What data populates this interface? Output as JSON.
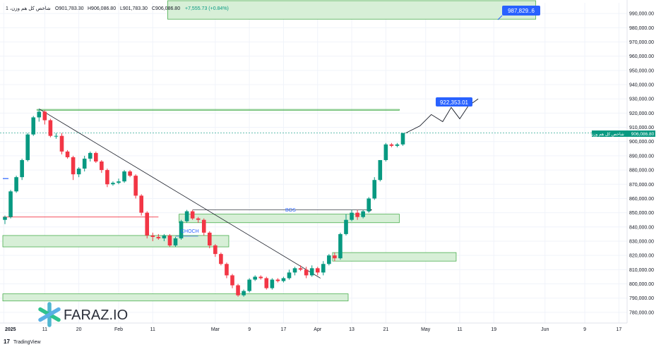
{
  "legend": {
    "symbol": "شاخص کل هم وزن، 1",
    "open": "O901,783.30",
    "high": "H906,086.80",
    "low": "L901,783.30",
    "close": "C906,086.80",
    "change": "+7,555.73 (+0.84%)"
  },
  "current_price_tag": {
    "name": "شاخص کل هم وزن",
    "value": "906,086.80"
  },
  "labels": {
    "bos": "BOS",
    "choch": "CHOCH",
    "target_1": "922,353.01",
    "target_2": "987,829..6"
  },
  "branding": {
    "logo_text": "FARAZ.IO",
    "footer": "TradingView"
  },
  "colors": {
    "up": "#089981",
    "down": "#f23645",
    "zone_fill": "#d7efd7",
    "zone_border": "#4caf50",
    "tag_blue": "#2962ff",
    "price_tag_green": "#089981"
  },
  "chart_data": {
    "type": "candlestick",
    "y_axis": {
      "ticks": [
        "990,000.00",
        "980,000.00",
        "970,000.00",
        "960,000.00",
        "950,000.00",
        "940,000.00",
        "930,000.00",
        "920,000.00",
        "910,000.00",
        "900,000.00",
        "890,000.00",
        "880,000.00",
        "870,000.00",
        "860,000.00",
        "850,000.00",
        "840,000.00",
        "830,000.00",
        "820,000.00",
        "810,000.00",
        "800,000.00",
        "790,000.00",
        "780,000.00"
      ],
      "range": [
        772500,
        997500
      ]
    },
    "x_axis": {
      "ticks": [
        "2025",
        "11",
        "20",
        "Feb",
        "11",
        "Mar",
        "9",
        "17",
        "Apr",
        "13",
        "21",
        "May",
        "11",
        "19",
        "Jun",
        "9",
        "17"
      ]
    },
    "candles": [
      {
        "o": 845,
        "h": 848,
        "l": 842,
        "c": 847
      },
      {
        "o": 847,
        "h": 866,
        "l": 846,
        "c": 865
      },
      {
        "o": 865,
        "h": 876,
        "l": 864,
        "c": 875
      },
      {
        "o": 875,
        "h": 888,
        "l": 873,
        "c": 887
      },
      {
        "o": 887,
        "h": 906,
        "l": 886,
        "c": 905
      },
      {
        "o": 905,
        "h": 918,
        "l": 904,
        "c": 917
      },
      {
        "o": 917,
        "h": 923,
        "l": 914,
        "c": 921
      },
      {
        "o": 921,
        "h": 922,
        "l": 912,
        "c": 915
      },
      {
        "o": 915,
        "h": 916,
        "l": 903,
        "c": 904
      },
      {
        "o": 904,
        "h": 906,
        "l": 902,
        "c": 904
      },
      {
        "o": 904,
        "h": 906,
        "l": 891,
        "c": 893
      },
      {
        "o": 893,
        "h": 894,
        "l": 888,
        "c": 889
      },
      {
        "o": 889,
        "h": 890,
        "l": 873,
        "c": 877
      },
      {
        "o": 877,
        "h": 882,
        "l": 875,
        "c": 881
      },
      {
        "o": 881,
        "h": 890,
        "l": 879,
        "c": 888
      },
      {
        "o": 888,
        "h": 893,
        "l": 886,
        "c": 892
      },
      {
        "o": 892,
        "h": 893,
        "l": 885,
        "c": 886
      },
      {
        "o": 886,
        "h": 887,
        "l": 878,
        "c": 880
      },
      {
        "o": 880,
        "h": 881,
        "l": 868,
        "c": 870
      },
      {
        "o": 870,
        "h": 872,
        "l": 869,
        "c": 871
      },
      {
        "o": 871,
        "h": 874,
        "l": 870,
        "c": 872
      },
      {
        "o": 872,
        "h": 880,
        "l": 871,
        "c": 879
      },
      {
        "o": 879,
        "h": 880,
        "l": 875,
        "c": 876
      },
      {
        "o": 876,
        "h": 877,
        "l": 860,
        "c": 862
      },
      {
        "o": 862,
        "h": 863,
        "l": 848,
        "c": 850
      },
      {
        "o": 850,
        "h": 851,
        "l": 832,
        "c": 834
      },
      {
        "o": 834,
        "h": 836,
        "l": 830,
        "c": 833
      },
      {
        "o": 833,
        "h": 835,
        "l": 831,
        "c": 832
      },
      {
        "o": 832,
        "h": 835,
        "l": 830,
        "c": 834
      },
      {
        "o": 834,
        "h": 835,
        "l": 826,
        "c": 827
      },
      {
        "o": 827,
        "h": 833,
        "l": 826,
        "c": 832
      },
      {
        "o": 832,
        "h": 845,
        "l": 831,
        "c": 844
      },
      {
        "o": 844,
        "h": 852,
        "l": 843,
        "c": 851
      },
      {
        "o": 851,
        "h": 852,
        "l": 845,
        "c": 846
      },
      {
        "o": 846,
        "h": 847,
        "l": 843,
        "c": 845
      },
      {
        "o": 845,
        "h": 846,
        "l": 834,
        "c": 836
      },
      {
        "o": 836,
        "h": 837,
        "l": 825,
        "c": 827
      },
      {
        "o": 827,
        "h": 828,
        "l": 819,
        "c": 821
      },
      {
        "o": 821,
        "h": 822,
        "l": 813,
        "c": 814
      },
      {
        "o": 814,
        "h": 815,
        "l": 804,
        "c": 806
      },
      {
        "o": 806,
        "h": 807,
        "l": 797,
        "c": 799
      },
      {
        "o": 799,
        "h": 800,
        "l": 791,
        "c": 792
      },
      {
        "o": 792,
        "h": 796,
        "l": 791,
        "c": 795
      },
      {
        "o": 795,
        "h": 804,
        "l": 794,
        "c": 803
      },
      {
        "o": 803,
        "h": 806,
        "l": 802,
        "c": 805
      },
      {
        "o": 805,
        "h": 806,
        "l": 803,
        "c": 804
      },
      {
        "o": 804,
        "h": 805,
        "l": 796,
        "c": 797
      },
      {
        "o": 797,
        "h": 804,
        "l": 796,
        "c": 803
      },
      {
        "o": 803,
        "h": 804,
        "l": 801,
        "c": 802
      },
      {
        "o": 802,
        "h": 805,
        "l": 801,
        "c": 804
      },
      {
        "o": 804,
        "h": 810,
        "l": 803,
        "c": 808
      },
      {
        "o": 808,
        "h": 812,
        "l": 806,
        "c": 811
      },
      {
        "o": 811,
        "h": 813,
        "l": 809,
        "c": 810
      },
      {
        "o": 810,
        "h": 812,
        "l": 804,
        "c": 806
      },
      {
        "o": 806,
        "h": 813,
        "l": 805,
        "c": 811
      },
      {
        "o": 811,
        "h": 812,
        "l": 806,
        "c": 808
      },
      {
        "o": 808,
        "h": 816,
        "l": 806,
        "c": 814
      },
      {
        "o": 814,
        "h": 821,
        "l": 813,
        "c": 820
      },
      {
        "o": 820,
        "h": 822,
        "l": 816,
        "c": 818
      },
      {
        "o": 818,
        "h": 836,
        "l": 817,
        "c": 835
      },
      {
        "o": 835,
        "h": 849,
        "l": 834,
        "c": 845
      },
      {
        "o": 845,
        "h": 852,
        "l": 844,
        "c": 850
      },
      {
        "o": 850,
        "h": 852,
        "l": 845,
        "c": 847
      },
      {
        "o": 847,
        "h": 852,
        "l": 846,
        "c": 851
      },
      {
        "o": 851,
        "h": 861,
        "l": 850,
        "c": 860
      },
      {
        "o": 860,
        "h": 875,
        "l": 859,
        "c": 873
      },
      {
        "o": 873,
        "h": 887,
        "l": 872,
        "c": 887
      },
      {
        "o": 887,
        "h": 899,
        "l": 886,
        "c": 898
      },
      {
        "o": 898,
        "h": 899,
        "l": 896,
        "c": 897
      },
      {
        "o": 897,
        "h": 899,
        "l": 896,
        "c": 898
      },
      {
        "o": 898,
        "h": 906,
        "l": 897,
        "c": 906
      }
    ],
    "projection": [
      906,
      911,
      919,
      914,
      924,
      916,
      925
    ],
    "zones": [
      {
        "from_bar": 31,
        "to_bar": 69,
        "y1": 843,
        "y2": 849
      },
      {
        "from_bar": 58,
        "to_bar": 79,
        "y1": 816,
        "y2": 822
      },
      {
        "from_bar": 0,
        "to_bar": 39,
        "y1": 826,
        "y2": 834
      },
      {
        "from_bar": 0,
        "to_bar": 60,
        "y1": 788,
        "y2": 793
      },
      {
        "from_bar": 29,
        "to_bar": 93,
        "y1": 986,
        "y2": 999
      },
      {
        "from_bar": 6,
        "to_bar": 69,
        "y1": 922,
        "y2": 922.6
      }
    ]
  }
}
